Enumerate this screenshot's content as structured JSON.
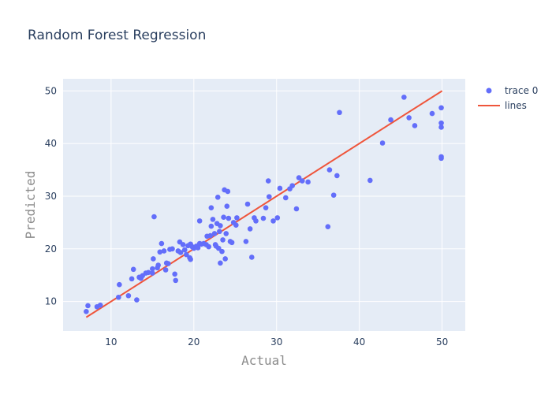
{
  "chart_data": {
    "type": "scatter",
    "title": "Random Forest Regression",
    "xlabel": "Actual",
    "ylabel": "Predicted",
    "xlim": [
      4.2,
      52.8
    ],
    "ylim": [
      4.4,
      52.3
    ],
    "xticks": [
      10,
      20,
      30,
      40,
      50
    ],
    "yticks": [
      10,
      20,
      30,
      40,
      50
    ],
    "grid": true,
    "legend_position": "top-right",
    "colors": {
      "plot_bg": "#e5ecf6",
      "grid": "#ffffff",
      "marker": "#636efa",
      "line": "#ef553b"
    },
    "series": [
      {
        "name": "trace 0",
        "mode": "markers",
        "points": [
          [
            7.0,
            8.1
          ],
          [
            7.2,
            9.2
          ],
          [
            8.3,
            9.0
          ],
          [
            8.7,
            9.3
          ],
          [
            10.9,
            10.8
          ],
          [
            11.0,
            13.2
          ],
          [
            12.1,
            11.1
          ],
          [
            12.5,
            14.3
          ],
          [
            12.7,
            16.1
          ],
          [
            13.1,
            10.3
          ],
          [
            13.4,
            14.6
          ],
          [
            13.6,
            14.4
          ],
          [
            13.8,
            14.9
          ],
          [
            14.2,
            15.4
          ],
          [
            14.5,
            15.5
          ],
          [
            15.0,
            15.4
          ],
          [
            15.0,
            16.2
          ],
          [
            15.1,
            18.1
          ],
          [
            15.2,
            26.1
          ],
          [
            15.6,
            16.4
          ],
          [
            15.7,
            16.9
          ],
          [
            15.9,
            19.4
          ],
          [
            16.1,
            21.0
          ],
          [
            16.4,
            19.6
          ],
          [
            16.6,
            16.0
          ],
          [
            16.7,
            17.3
          ],
          [
            16.9,
            17.2
          ],
          [
            17.1,
            19.9
          ],
          [
            17.4,
            20.0
          ],
          [
            17.7,
            15.2
          ],
          [
            17.8,
            14.0
          ],
          [
            18.1,
            19.6
          ],
          [
            18.3,
            21.3
          ],
          [
            18.4,
            19.3
          ],
          [
            18.7,
            20.8
          ],
          [
            18.9,
            19.8
          ],
          [
            19.1,
            18.9
          ],
          [
            19.3,
            20.6
          ],
          [
            19.5,
            18.3
          ],
          [
            19.6,
            20.9
          ],
          [
            19.6,
            18.0
          ],
          [
            19.8,
            20.4
          ],
          [
            20.0,
            20.1
          ],
          [
            20.3,
            20.5
          ],
          [
            20.5,
            20.2
          ],
          [
            20.7,
            21.0
          ],
          [
            20.7,
            25.3
          ],
          [
            20.9,
            20.9
          ],
          [
            21.2,
            21.0
          ],
          [
            21.5,
            20.8
          ],
          [
            21.6,
            22.4
          ],
          [
            21.8,
            20.4
          ],
          [
            22.0,
            22.5
          ],
          [
            22.1,
            24.3
          ],
          [
            22.1,
            27.8
          ],
          [
            22.3,
            25.6
          ],
          [
            22.5,
            22.9
          ],
          [
            22.6,
            20.8
          ],
          [
            22.7,
            20.5
          ],
          [
            22.8,
            24.8
          ],
          [
            22.9,
            29.8
          ],
          [
            23.0,
            20.1
          ],
          [
            23.1,
            23.3
          ],
          [
            23.2,
            24.4
          ],
          [
            23.2,
            17.3
          ],
          [
            23.4,
            19.5
          ],
          [
            23.5,
            21.7
          ],
          [
            23.6,
            26.0
          ],
          [
            23.7,
            31.2
          ],
          [
            23.8,
            18.1
          ],
          [
            23.9,
            22.9
          ],
          [
            24.0,
            28.1
          ],
          [
            24.1,
            30.9
          ],
          [
            24.2,
            25.8
          ],
          [
            24.4,
            21.4
          ],
          [
            24.6,
            21.2
          ],
          [
            24.8,
            25.0
          ],
          [
            25.1,
            24.5
          ],
          [
            25.2,
            25.9
          ],
          [
            26.3,
            21.4
          ],
          [
            26.5,
            28.5
          ],
          [
            26.8,
            23.8
          ],
          [
            27.0,
            18.4
          ],
          [
            27.3,
            25.9
          ],
          [
            27.5,
            25.3
          ],
          [
            28.4,
            25.8
          ],
          [
            28.7,
            27.8
          ],
          [
            29.0,
            32.9
          ],
          [
            29.1,
            29.9
          ],
          [
            29.6,
            25.3
          ],
          [
            30.1,
            25.9
          ],
          [
            30.4,
            31.5
          ],
          [
            31.1,
            29.7
          ],
          [
            31.6,
            31.4
          ],
          [
            31.9,
            32.0
          ],
          [
            32.4,
            27.6
          ],
          [
            32.7,
            33.5
          ],
          [
            33.1,
            32.9
          ],
          [
            33.8,
            32.7
          ],
          [
            36.2,
            24.2
          ],
          [
            36.4,
            35.0
          ],
          [
            36.9,
            30.2
          ],
          [
            37.3,
            33.9
          ],
          [
            37.6,
            45.9
          ],
          [
            41.3,
            33.0
          ],
          [
            42.8,
            40.1
          ],
          [
            43.8,
            44.5
          ],
          [
            45.4,
            48.8
          ],
          [
            46.0,
            44.9
          ],
          [
            46.7,
            43.4
          ],
          [
            48.8,
            45.7
          ],
          [
            49.9,
            46.8
          ],
          [
            49.9,
            43.9
          ],
          [
            49.9,
            43.1
          ],
          [
            49.9,
            37.5
          ],
          [
            49.9,
            37.2
          ]
        ]
      },
      {
        "name": "lines",
        "mode": "lines",
        "points": [
          [
            7.0,
            7.0
          ],
          [
            50.0,
            50.0
          ]
        ]
      }
    ]
  }
}
